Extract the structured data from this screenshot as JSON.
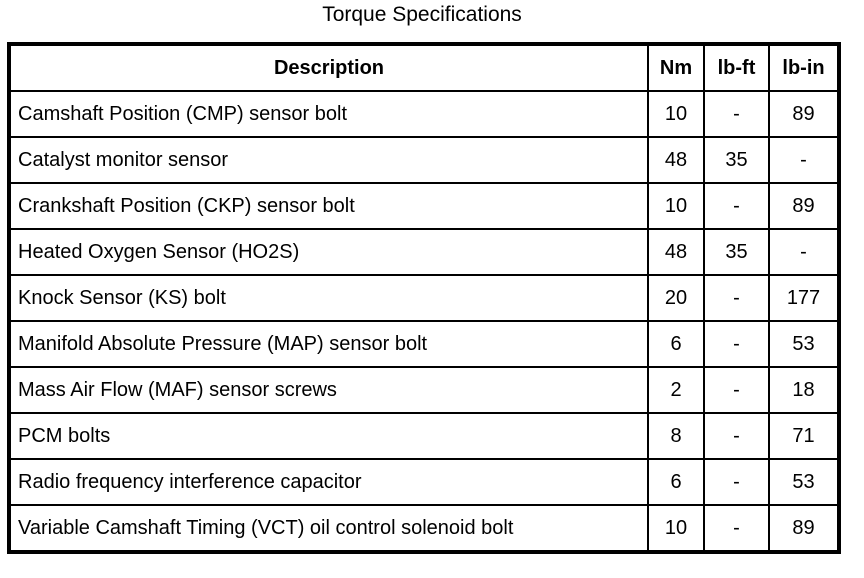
{
  "page": {
    "title": "Torque Specifications"
  },
  "table": {
    "headers": {
      "description": "Description",
      "nm": "Nm",
      "lb_ft": "lb-ft",
      "lb_in": "lb-in"
    },
    "rows": [
      {
        "description": "Camshaft Position (CMP) sensor bolt",
        "nm": "10",
        "lb_ft": "-",
        "lb_in": "89"
      },
      {
        "description": "Catalyst monitor sensor",
        "nm": "48",
        "lb_ft": "35",
        "lb_in": "-"
      },
      {
        "description": "Crankshaft Position (CKP) sensor bolt",
        "nm": "10",
        "lb_ft": "-",
        "lb_in": "89"
      },
      {
        "description": "Heated Oxygen Sensor (HO2S)",
        "nm": "48",
        "lb_ft": "35",
        "lb_in": "-"
      },
      {
        "description": "Knock Sensor (KS) bolt",
        "nm": "20",
        "lb_ft": "-",
        "lb_in": "177"
      },
      {
        "description": "Manifold Absolute Pressure (MAP) sensor bolt",
        "nm": "6",
        "lb_ft": "-",
        "lb_in": "53"
      },
      {
        "description": "Mass Air Flow (MAF) sensor screws",
        "nm": "2",
        "lb_ft": "-",
        "lb_in": "18"
      },
      {
        "description": "PCM bolts",
        "nm": "8",
        "lb_ft": "-",
        "lb_in": "71"
      },
      {
        "description": "Radio frequency interference capacitor",
        "nm": "6",
        "lb_ft": "-",
        "lb_in": "53"
      },
      {
        "description": "Variable Camshaft Timing (VCT) oil control solenoid bolt",
        "nm": "10",
        "lb_ft": "-",
        "lb_in": "89"
      }
    ],
    "colors": {
      "border": "#000000",
      "text": "#000000",
      "background": "#ffffff"
    }
  }
}
